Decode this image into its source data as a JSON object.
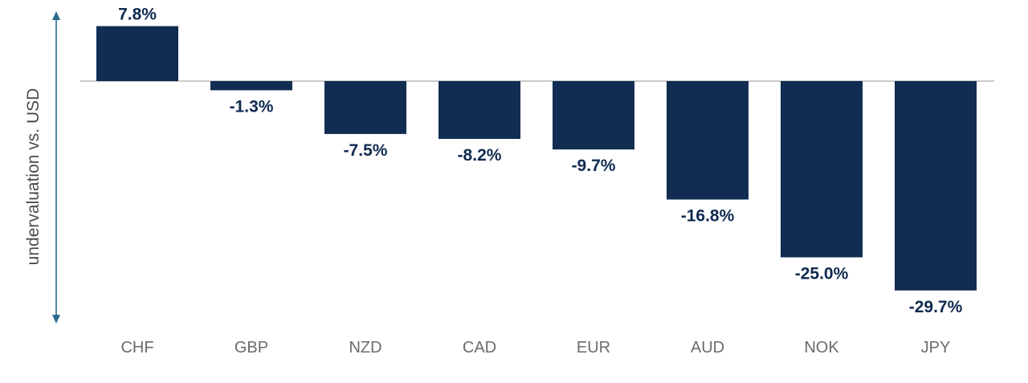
{
  "chart_data": {
    "type": "bar",
    "categories": [
      "CHF",
      "GBP",
      "NZD",
      "CAD",
      "EUR",
      "AUD",
      "NOK",
      "JPY"
    ],
    "values": [
      7.8,
      -1.3,
      -7.5,
      -8.2,
      -9.7,
      -16.8,
      -25.0,
      -29.7
    ],
    "value_labels": [
      "7.8%",
      "-1.3%",
      "-7.5%",
      "-8.2%",
      "-9.7%",
      "-16.8%",
      "-25.0%",
      "-29.7%"
    ],
    "ylabel": "undervaluation vs. USD",
    "ylim": [
      -35,
      11
    ],
    "grid": false,
    "colors": {
      "bar": "#112d52",
      "zero_line": "#b8b8b8",
      "axis_arrow": "#2a6a8e",
      "category_text": "#6b6b6b",
      "value_text": "#0f2a50"
    }
  }
}
